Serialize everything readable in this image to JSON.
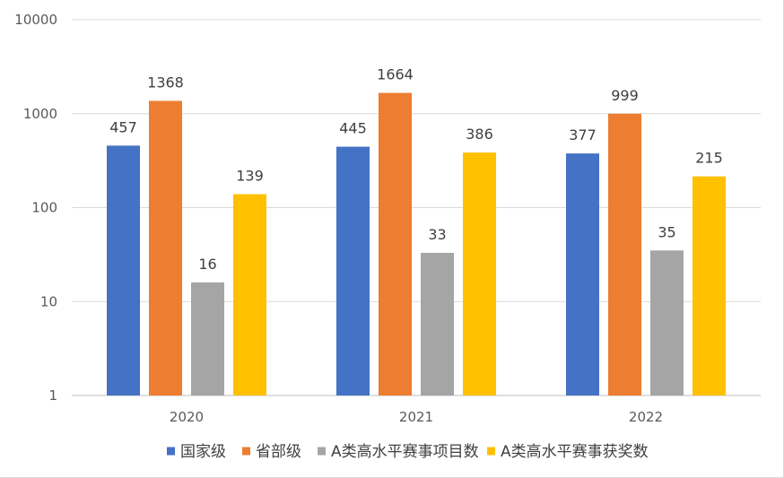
{
  "chart_data": {
    "type": "bar",
    "title": "",
    "xlabel": "",
    "ylabel": "",
    "y_scale": "log",
    "ylim": [
      1,
      10000
    ],
    "y_ticks": [
      "1",
      "10",
      "100",
      "1000",
      "10000"
    ],
    "grid": true,
    "legend_position": "bottom",
    "categories": [
      "2020",
      "2021",
      "2022"
    ],
    "series": [
      {
        "name": "国家级",
        "color": "#4472C4",
        "values": [
          457,
          445,
          377
        ]
      },
      {
        "name": "省部级",
        "color": "#ED7D31",
        "values": [
          1368,
          1664,
          999
        ]
      },
      {
        "name": "A类高水平赛事项目数",
        "color": "#A5A5A5",
        "values": [
          16,
          33,
          35
        ]
      },
      {
        "name": "A类高水平赛事获奖数",
        "color": "#FFC000",
        "values": [
          139,
          386,
          215
        ]
      }
    ]
  }
}
